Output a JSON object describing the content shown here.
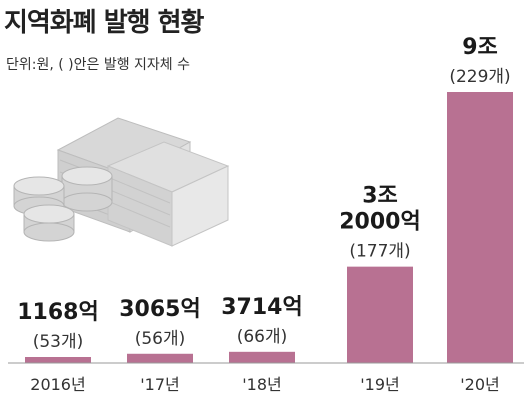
{
  "header": {
    "title": "지역화폐 발행 현황",
    "unit_note": "단위:원, ( )안은 발행 지자체 수"
  },
  "colors": {
    "bar": "#b87192",
    "bar_light": "#c98aa6",
    "text": "#1a1a1a",
    "axis": "#555555"
  },
  "illustration": {
    "icon": "money-stack-illustration"
  },
  "chart_data": {
    "type": "bar",
    "title": "지역화폐 발행 현황",
    "subtitle": "단위:원, ( )안은 발행 지자체 수",
    "categories": [
      "2016년",
      "'17년",
      "'18년",
      "'19년",
      "'20년"
    ],
    "values": [
      1168,
      3065,
      3714,
      32000,
      90000
    ],
    "value_labels": [
      "1168억",
      "3065억",
      "3714억",
      "3조\n2000억",
      "9조"
    ],
    "counts": [
      "(53개)",
      "(56개)",
      "(66개)",
      "(177개)",
      "(229개)"
    ],
    "ylim": [
      0,
      90000
    ],
    "grid": false,
    "legend": "none"
  }
}
